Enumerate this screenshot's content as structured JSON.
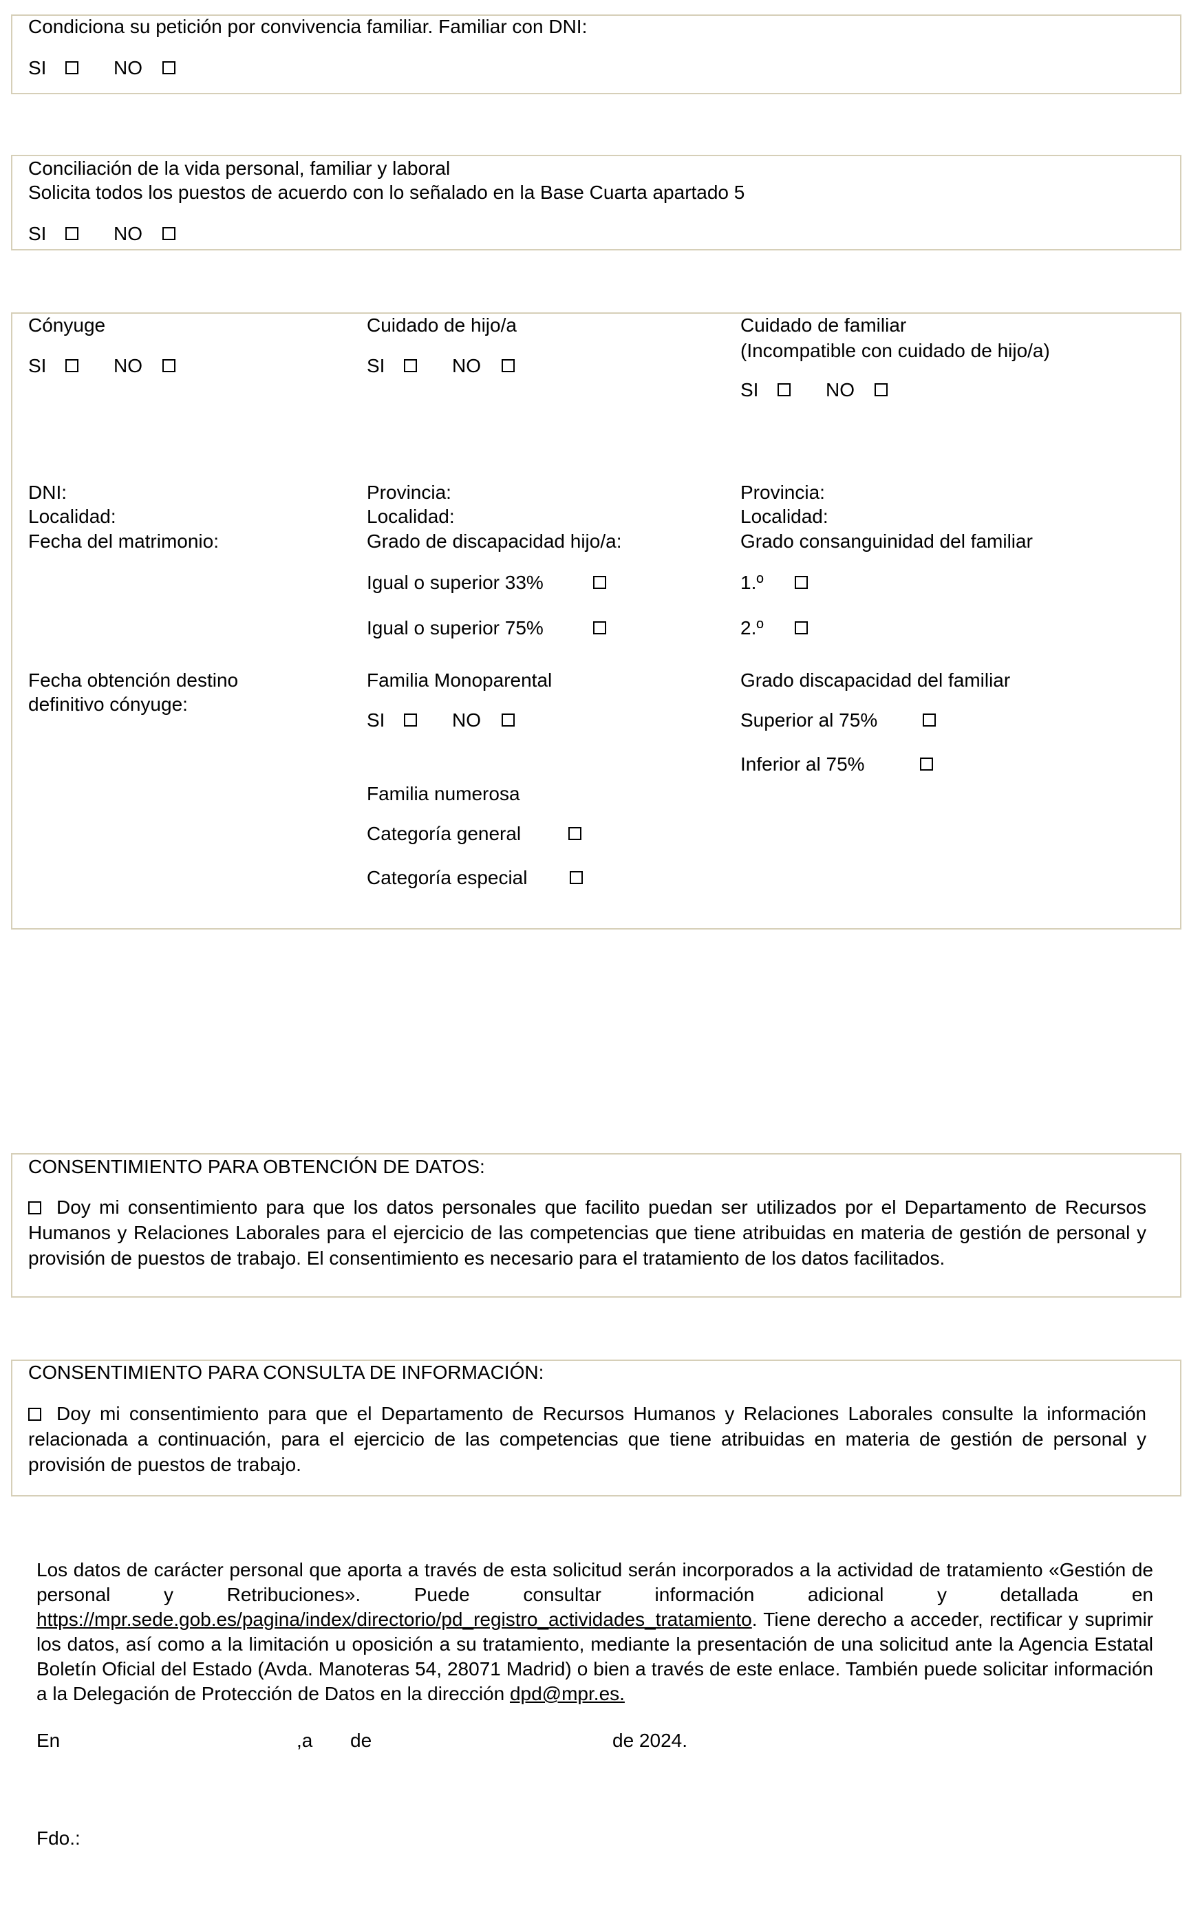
{
  "convivencia": {
    "label": "Condiciona su petición por convivencia familiar. Familiar con DNI:",
    "si": "SI",
    "no": "NO"
  },
  "conciliacion": {
    "line1": "Conciliación de la vida personal, familiar y laboral",
    "line2": "Solicita todos los puestos de acuerdo con lo señalado en la Base Cuarta apartado 5",
    "si": "SI",
    "no": "NO"
  },
  "conyuge": {
    "title": "Cónyuge",
    "si": "SI",
    "no": "NO",
    "dni": "DNI:",
    "localidad": "Localidad:",
    "fecha_matrimonio": "Fecha del matrimonio:",
    "fecha_destino_1": "Fecha obtención destino",
    "fecha_destino_2": "definitivo cónyuge:"
  },
  "hijo": {
    "title": "Cuidado de hijo/a",
    "si": "SI",
    "no": "NO",
    "provincia": "Provincia:",
    "localidad": "Localidad:",
    "grado": "Grado de discapacidad hijo/a:",
    "igual33": "Igual o superior 33%",
    "igual75": "Igual o superior 75%",
    "monoparental": "Familia Monoparental",
    "mono_si": "SI",
    "mono_no": "NO",
    "numerosa": "Familia numerosa",
    "cat_general": "Categoría general",
    "cat_especial": "Categoría especial"
  },
  "familiar": {
    "title": "Cuidado de familiar",
    "subtitle": "(Incompatible con cuidado de hijo/a)",
    "si": "SI",
    "no": "NO",
    "provincia": "Provincia:",
    "localidad": "Localidad:",
    "grado_consanguinidad": "Grado consanguinidad del familiar",
    "primero": "1.º",
    "segundo": "2.º",
    "grado_discapacidad": "Grado discapacidad del familiar",
    "superior75": "Superior al 75%",
    "inferior75": "Inferior al 75%"
  },
  "consent_datos": {
    "title": "CONSENTIMIENTO PARA OBTENCIÓN DE DATOS:",
    "text": "Doy mi consentimiento para que los datos personales que facilito puedan ser utilizados por el Departamento de Recursos Humanos y Relaciones Laborales para el ejercicio de las competencias que tiene atribuidas en materia de gestión de personal y provisión de puestos de trabajo. El consentimiento es necesario para el tratamiento de los datos facilitados."
  },
  "consent_consulta": {
    "title": "CONSENTIMIENTO PARA CONSULTA DE INFORMACIÓN:",
    "text": "Doy mi consentimiento para que el Departamento de Recursos Humanos y Relaciones Laborales consulte la información relacionada a continuación, para el ejercicio de las competencias que tiene atribuidas en materia de gestión de personal y provisión de puestos de trabajo."
  },
  "privacy": {
    "text1": "Los datos de carácter personal que aporta a través de esta solicitud serán incorporados a la actividad de tratamiento «Gestión de personal y Retribuciones». Puede consultar información adicional y detallada en ",
    "link": "https://mpr.sede.gob.es/pagina/index/directorio/pd_registro_actividades_tratamiento",
    "text2": ". Tiene derecho a acceder, rectificar y suprimir los datos, así como a la limitación u oposición a su tratamiento, mediante la presentación de una solicitud ante la Agencia Estatal Boletín Oficial del Estado (Avda. Manoteras 54, 28071 Madrid) o bien a través de este enlace. También puede solicitar información a la Delegación de Protección de Datos en la dirección ",
    "email": "dpd@mpr.es."
  },
  "signature": {
    "en": "En",
    "a": ",a",
    "de": "de",
    "year": "de 2024.",
    "fdo": "Fdo.:"
  }
}
